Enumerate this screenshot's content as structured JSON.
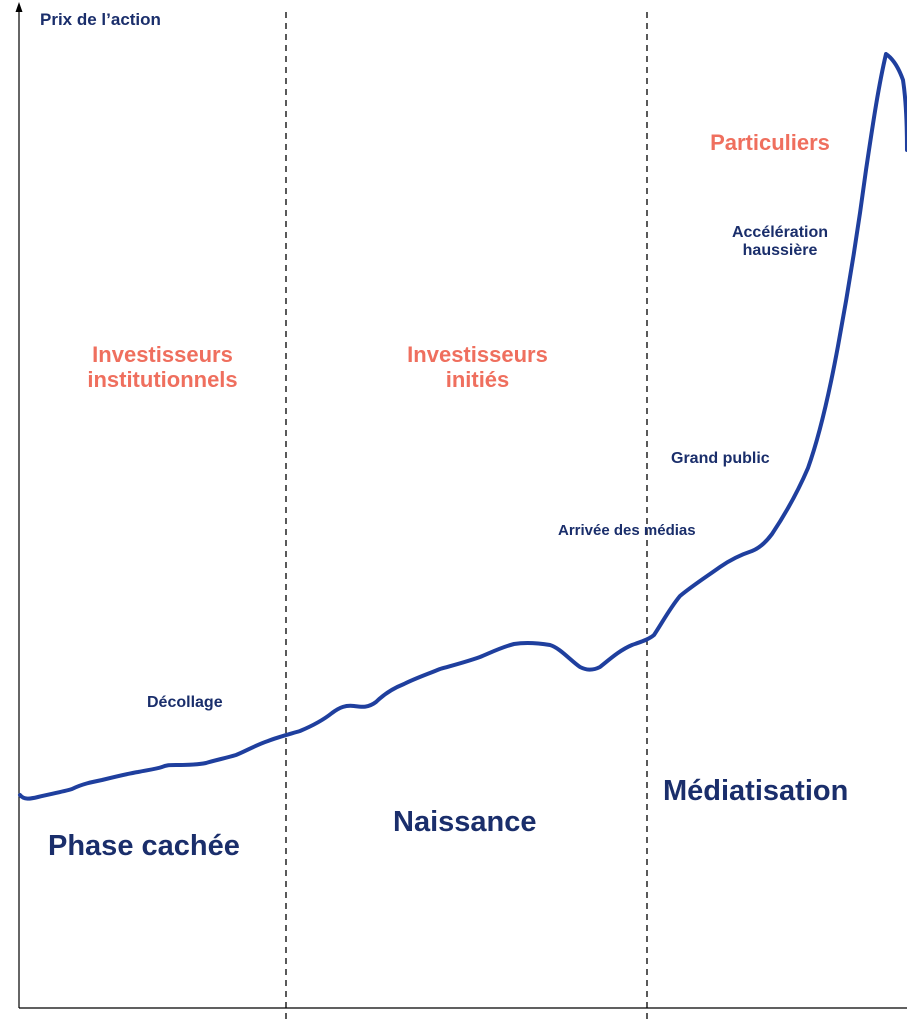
{
  "axis": {
    "y_title": "Prix de l’action"
  },
  "investors": {
    "institutional": "Investisseurs\ninstitutionnels",
    "insiders": "Investisseurs\ninitiés",
    "retail": "Particuliers"
  },
  "curve_labels": {
    "takeoff": "Décollage",
    "media_arrival": "Arrivée des médias",
    "general_public": "Grand public",
    "acceleration": "Accélération\nhaussière"
  },
  "phases": {
    "hidden": "Phase cachée",
    "birth": "Naissance",
    "media": "Médiatisation"
  },
  "colors": {
    "curve": "#1f3f9e",
    "phase_text": "#1a2e6b",
    "investor_text": "#ef6f5e",
    "axis": "#000000"
  }
}
